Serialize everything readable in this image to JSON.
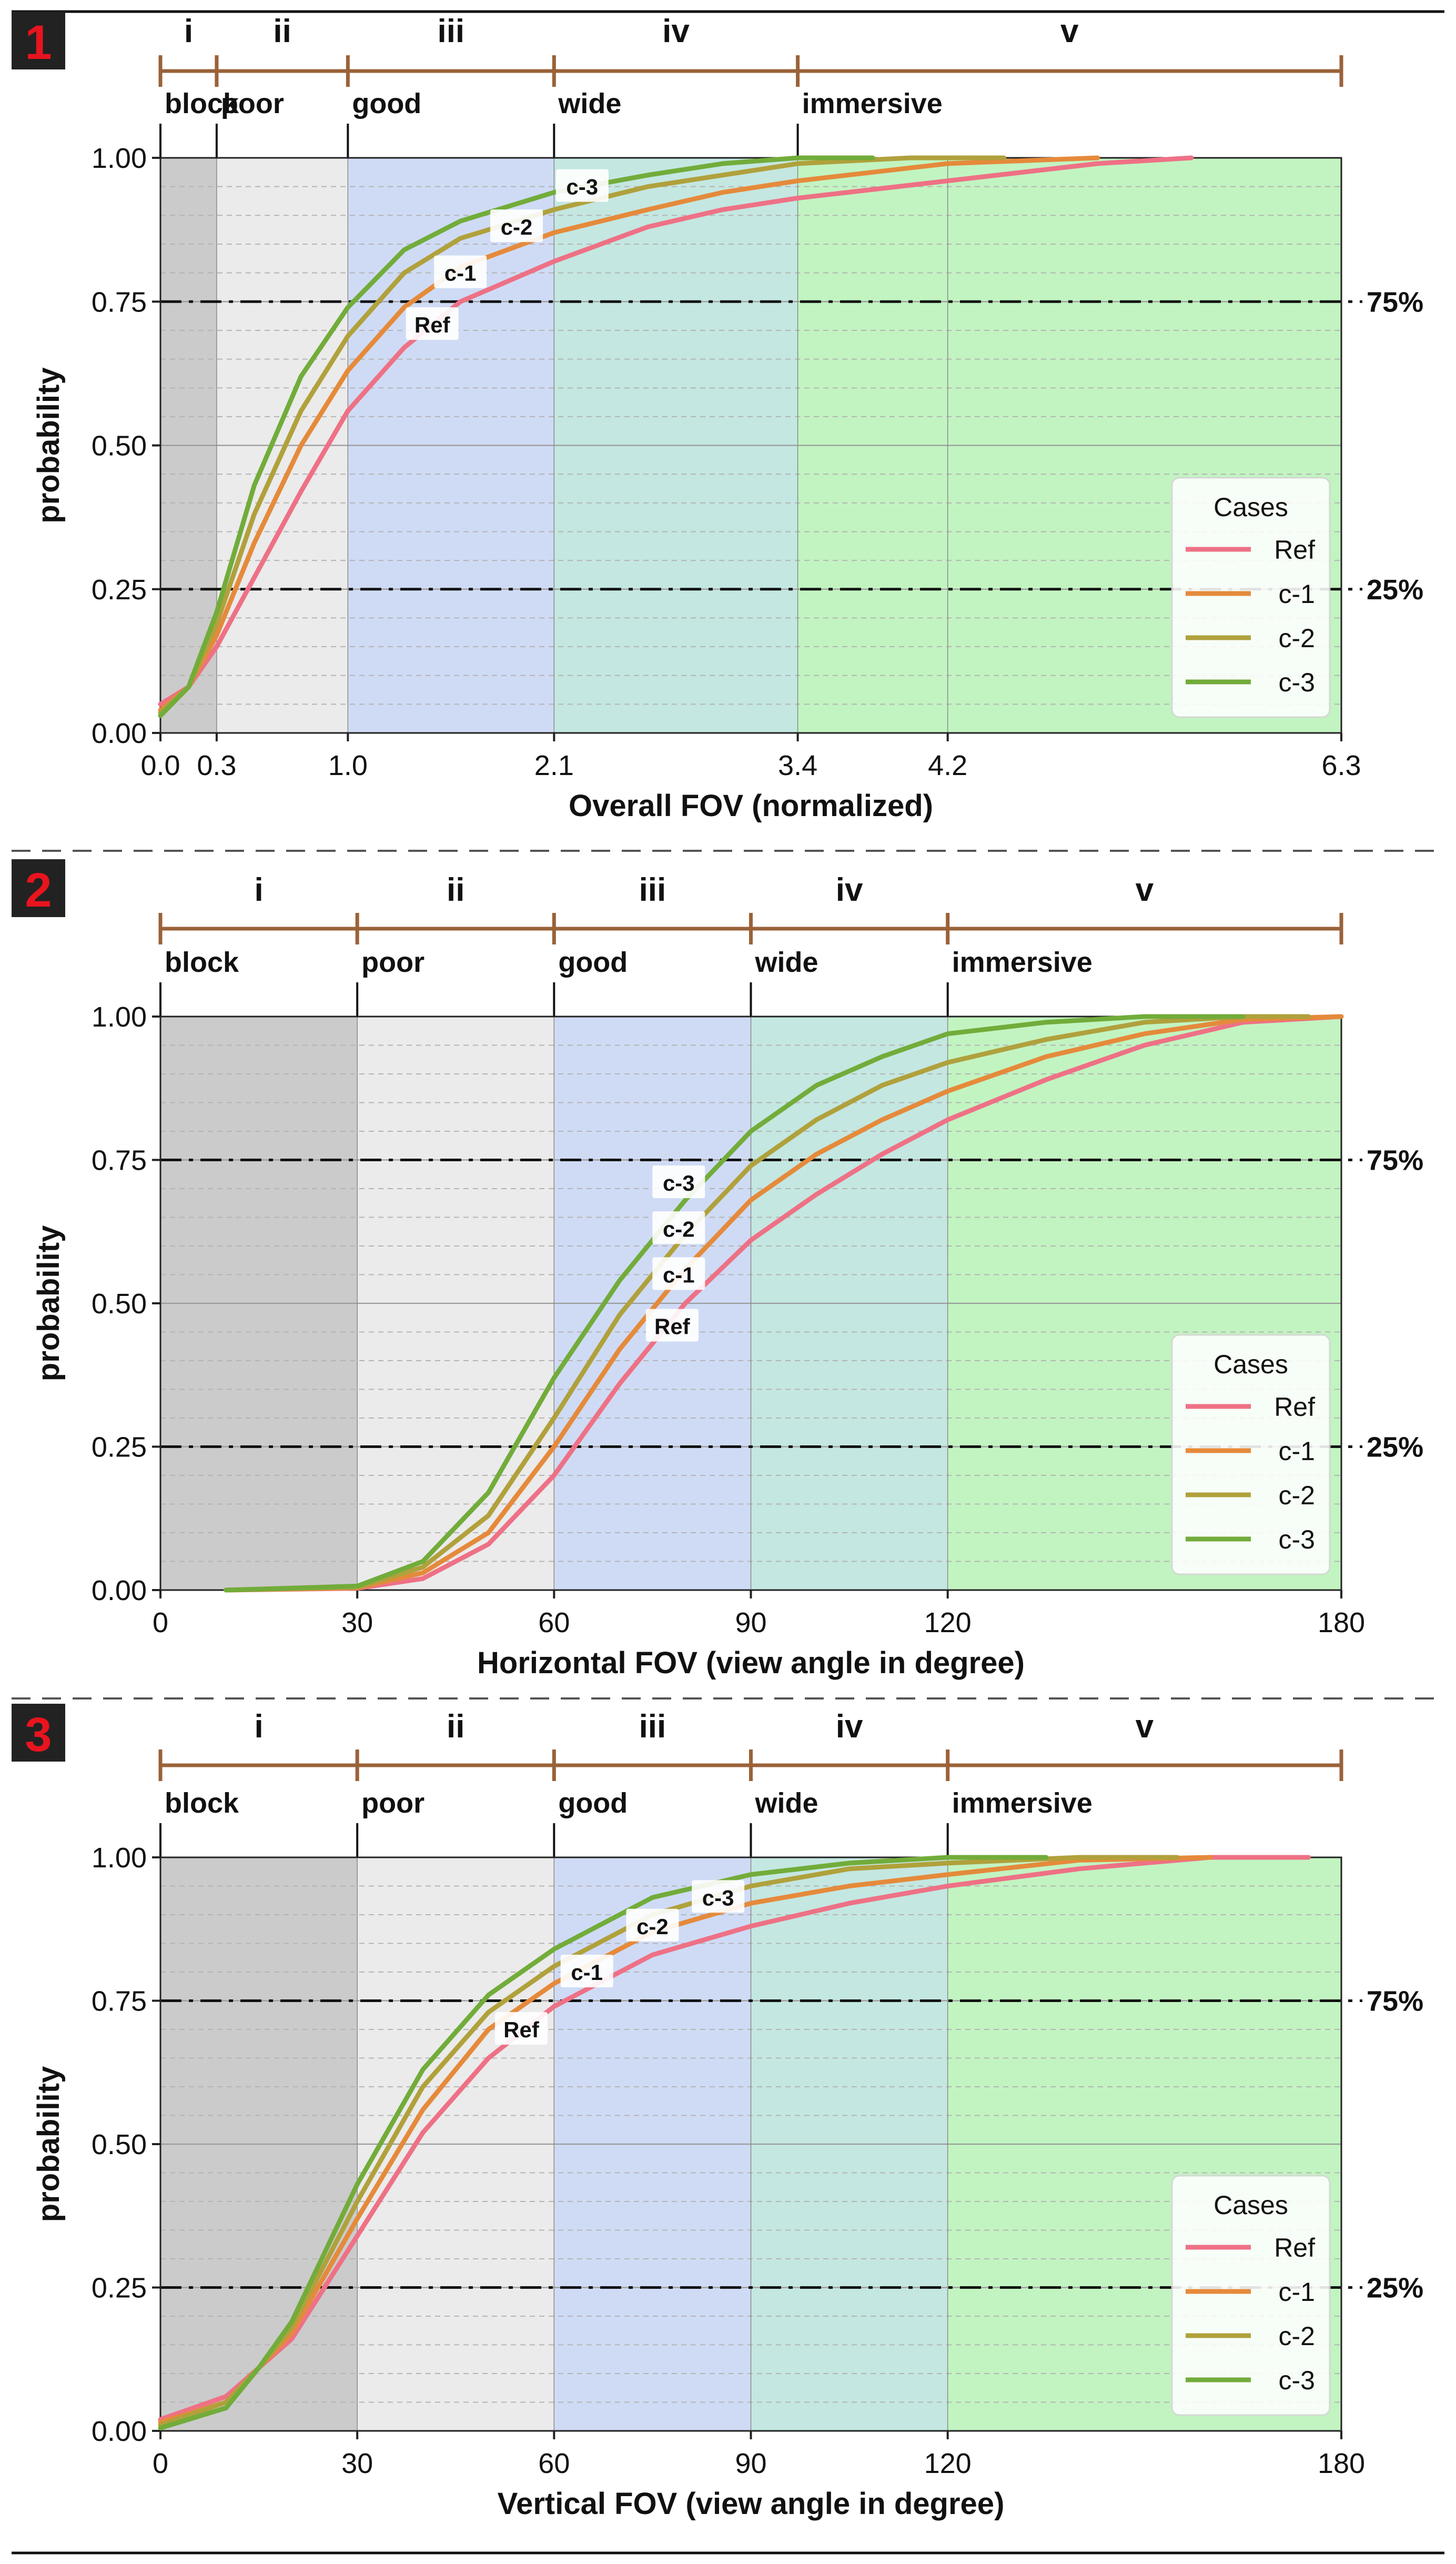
{
  "figure": {
    "style": {
      "class_colors": [
        "#cbcbcb",
        "#ebebeb",
        "#cfdbf5",
        "#c4e7e1",
        "#c2f4c1"
      ],
      "bracket_color": "#9a6238",
      "badge_bg": "#222222",
      "badge_fg": "#e8141e",
      "series_colors": {
        "Ref": "#ee7185",
        "c-1": "#e58a3b",
        "c-2": "#b0a13c",
        "c-3": "#72ac3a"
      }
    },
    "panels": [
      {
        "badge": "1",
        "class_numerals": [
          "i",
          "ii",
          "iii",
          "iv",
          "v"
        ],
        "class_names": [
          "block",
          "poor",
          "good",
          "wide",
          "immersive"
        ],
        "chart_data": {
          "type": "line",
          "xlabel": "Overall FOV (normalized)",
          "ylabel": "probability",
          "xlim": [
            0,
            6.3
          ],
          "ylim": [
            0,
            1
          ],
          "xticks": [
            0.0,
            0.3,
            1.0,
            2.1,
            3.4,
            4.2,
            6.3
          ],
          "xtick_labels": [
            "0.0",
            "0.3",
            "1.0",
            "2.1",
            "3.4",
            "4.2",
            "6.3"
          ],
          "yticks": [
            0,
            0.25,
            0.5,
            0.75,
            1.0
          ],
          "ytick_labels": [
            "0.00",
            "0.25",
            "0.50",
            "0.75",
            "1.00"
          ],
          "class_boundaries": [
            0.0,
            0.3,
            1.0,
            2.1,
            3.4,
            6.3
          ],
          "reference_lines": [
            {
              "y": 0.75,
              "label": "75%"
            },
            {
              "y": 0.25,
              "label": "25%"
            }
          ],
          "legend": {
            "title": "Cases",
            "position": "lower-right",
            "entries": [
              "Ref",
              "c-1",
              "c-2",
              "c-3"
            ]
          },
          "series": [
            {
              "name": "Ref",
              "x": [
                0.0,
                0.15,
                0.3,
                0.5,
                0.75,
                1.0,
                1.3,
                1.6,
                2.1,
                2.6,
                3.0,
                3.4,
                4.2,
                5.0,
                5.5
              ],
              "values": [
                0.05,
                0.08,
                0.15,
                0.27,
                0.42,
                0.56,
                0.67,
                0.75,
                0.82,
                0.88,
                0.91,
                0.93,
                0.96,
                0.99,
                1.0
              ]
            },
            {
              "name": "c-1",
              "x": [
                0.0,
                0.15,
                0.3,
                0.5,
                0.75,
                1.0,
                1.3,
                1.6,
                2.1,
                2.6,
                3.0,
                3.4,
                4.2,
                5.0
              ],
              "values": [
                0.04,
                0.08,
                0.17,
                0.33,
                0.5,
                0.63,
                0.74,
                0.81,
                0.87,
                0.91,
                0.94,
                0.96,
                0.99,
                1.0
              ]
            },
            {
              "name": "c-2",
              "x": [
                0.0,
                0.15,
                0.3,
                0.5,
                0.75,
                1.0,
                1.3,
                1.6,
                2.1,
                2.6,
                3.0,
                3.4,
                4.0,
                4.5
              ],
              "values": [
                0.035,
                0.08,
                0.19,
                0.38,
                0.56,
                0.69,
                0.8,
                0.86,
                0.91,
                0.95,
                0.97,
                0.99,
                1.0,
                1.0
              ]
            },
            {
              "name": "c-3",
              "x": [
                0.0,
                0.15,
                0.3,
                0.5,
                0.75,
                1.0,
                1.3,
                1.6,
                2.1,
                2.6,
                3.0,
                3.4,
                3.8
              ],
              "values": [
                0.03,
                0.08,
                0.21,
                0.43,
                0.62,
                0.74,
                0.84,
                0.89,
                0.94,
                0.97,
                0.99,
                1.0,
                1.0
              ]
            }
          ],
          "series_labels": [
            {
              "name": "Ref",
              "x": 1.45,
              "y": 0.71
            },
            {
              "name": "c-1",
              "x": 1.6,
              "y": 0.8
            },
            {
              "name": "c-2",
              "x": 1.9,
              "y": 0.88
            },
            {
              "name": "c-3",
              "x": 2.25,
              "y": 0.95
            }
          ]
        }
      },
      {
        "badge": "2",
        "class_numerals": [
          "i",
          "ii",
          "iii",
          "iv",
          "v"
        ],
        "class_names": [
          "block",
          "poor",
          "good",
          "wide",
          "immersive"
        ],
        "chart_data": {
          "type": "line",
          "xlabel": "Horizontal FOV (view angle in degree)",
          "ylabel": "probability",
          "xlim": [
            0,
            180
          ],
          "ylim": [
            0,
            1
          ],
          "xticks": [
            0,
            30,
            60,
            90,
            120,
            180
          ],
          "xtick_labels": [
            "0",
            "30",
            "60",
            "90",
            "120",
            "180"
          ],
          "yticks": [
            0,
            0.25,
            0.5,
            0.75,
            1.0
          ],
          "ytick_labels": [
            "0.00",
            "0.25",
            "0.50",
            "0.75",
            "1.00"
          ],
          "class_boundaries": [
            0,
            30,
            60,
            90,
            120,
            180
          ],
          "reference_lines": [
            {
              "y": 0.75,
              "label": "75%"
            },
            {
              "y": 0.25,
              "label": "25%"
            }
          ],
          "legend": {
            "title": "Cases",
            "position": "lower-right",
            "entries": [
              "Ref",
              "c-1",
              "c-2",
              "c-3"
            ]
          },
          "series": [
            {
              "name": "Ref",
              "x": [
                10,
                30,
                40,
                50,
                60,
                70,
                80,
                90,
                100,
                110,
                120,
                135,
                150,
                165,
                180
              ],
              "values": [
                0.0,
                0.003,
                0.02,
                0.08,
                0.2,
                0.36,
                0.5,
                0.61,
                0.69,
                0.76,
                0.82,
                0.89,
                0.95,
                0.99,
                1.0
              ]
            },
            {
              "name": "c-1",
              "x": [
                10,
                30,
                40,
                50,
                60,
                70,
                80,
                90,
                100,
                110,
                120,
                135,
                150,
                165,
                180
              ],
              "values": [
                0.0,
                0.004,
                0.03,
                0.1,
                0.25,
                0.42,
                0.56,
                0.68,
                0.76,
                0.82,
                0.87,
                0.93,
                0.97,
                0.995,
                1.0
              ]
            },
            {
              "name": "c-2",
              "x": [
                10,
                30,
                40,
                50,
                60,
                70,
                80,
                90,
                100,
                110,
                120,
                135,
                150,
                165,
                175
              ],
              "values": [
                0.0,
                0.005,
                0.04,
                0.13,
                0.3,
                0.48,
                0.62,
                0.74,
                0.82,
                0.88,
                0.92,
                0.96,
                0.99,
                1.0,
                1.0
              ]
            },
            {
              "name": "c-3",
              "x": [
                10,
                30,
                40,
                50,
                60,
                70,
                80,
                90,
                100,
                110,
                120,
                135,
                150,
                165
              ],
              "values": [
                0.0,
                0.007,
                0.05,
                0.17,
                0.37,
                0.54,
                0.68,
                0.8,
                0.88,
                0.93,
                0.97,
                0.99,
                1.0,
                1.0
              ]
            }
          ],
          "series_labels": [
            {
              "name": "Ref",
              "x": 78,
              "y": 0.46
            },
            {
              "name": "c-1",
              "x": 79,
              "y": 0.55
            },
            {
              "name": "c-2",
              "x": 79,
              "y": 0.63
            },
            {
              "name": "c-3",
              "x": 79,
              "y": 0.71
            }
          ]
        }
      },
      {
        "badge": "3",
        "class_numerals": [
          "i",
          "ii",
          "iii",
          "iv",
          "v"
        ],
        "class_names": [
          "block",
          "poor",
          "good",
          "wide",
          "immersive"
        ],
        "chart_data": {
          "type": "line",
          "xlabel": "Vertical FOV (view angle in degree)",
          "ylabel": "probability",
          "xlim": [
            0,
            180
          ],
          "ylim": [
            0,
            1
          ],
          "xticks": [
            0,
            30,
            60,
            90,
            120,
            180
          ],
          "xtick_labels": [
            "0",
            "30",
            "60",
            "90",
            "120",
            "180"
          ],
          "yticks": [
            0,
            0.25,
            0.5,
            0.75,
            1.0
          ],
          "ytick_labels": [
            "0.00",
            "0.25",
            "0.50",
            "0.75",
            "1.00"
          ],
          "class_boundaries": [
            0,
            30,
            60,
            90,
            120,
            180
          ],
          "reference_lines": [
            {
              "y": 0.75,
              "label": "75%"
            },
            {
              "y": 0.25,
              "label": "25%"
            }
          ],
          "legend": {
            "title": "Cases",
            "position": "lower-right",
            "entries": [
              "Ref",
              "c-1",
              "c-2",
              "c-3"
            ]
          },
          "series": [
            {
              "name": "Ref",
              "x": [
                0,
                10,
                15,
                20,
                30,
                40,
                50,
                60,
                75,
                90,
                105,
                120,
                140,
                160,
                175
              ],
              "values": [
                0.02,
                0.06,
                0.11,
                0.16,
                0.34,
                0.52,
                0.65,
                0.74,
                0.83,
                0.88,
                0.92,
                0.95,
                0.98,
                1.0,
                1.0
              ]
            },
            {
              "name": "c-1",
              "x": [
                0,
                10,
                15,
                20,
                30,
                40,
                50,
                60,
                75,
                90,
                105,
                120,
                140,
                160
              ],
              "values": [
                0.015,
                0.05,
                0.11,
                0.17,
                0.37,
                0.56,
                0.7,
                0.78,
                0.87,
                0.92,
                0.95,
                0.97,
                0.995,
                1.0
              ]
            },
            {
              "name": "c-2",
              "x": [
                0,
                10,
                15,
                20,
                30,
                40,
                50,
                60,
                75,
                90,
                105,
                120,
                140,
                155
              ],
              "values": [
                0.01,
                0.05,
                0.11,
                0.18,
                0.4,
                0.6,
                0.73,
                0.81,
                0.9,
                0.95,
                0.98,
                0.99,
                1.0,
                1.0
              ]
            },
            {
              "name": "c-3",
              "x": [
                0,
                10,
                15,
                20,
                30,
                40,
                50,
                60,
                75,
                90,
                105,
                120,
                135
              ],
              "values": [
                0.005,
                0.04,
                0.11,
                0.19,
                0.43,
                0.63,
                0.76,
                0.84,
                0.93,
                0.97,
                0.99,
                1.0,
                1.0
              ]
            }
          ],
          "series_labels": [
            {
              "name": "Ref",
              "x": 55,
              "y": 0.7
            },
            {
              "name": "c-1",
              "x": 65,
              "y": 0.8
            },
            {
              "name": "c-2",
              "x": 75,
              "y": 0.88
            },
            {
              "name": "c-3",
              "x": 85,
              "y": 0.93
            }
          ]
        }
      }
    ]
  }
}
